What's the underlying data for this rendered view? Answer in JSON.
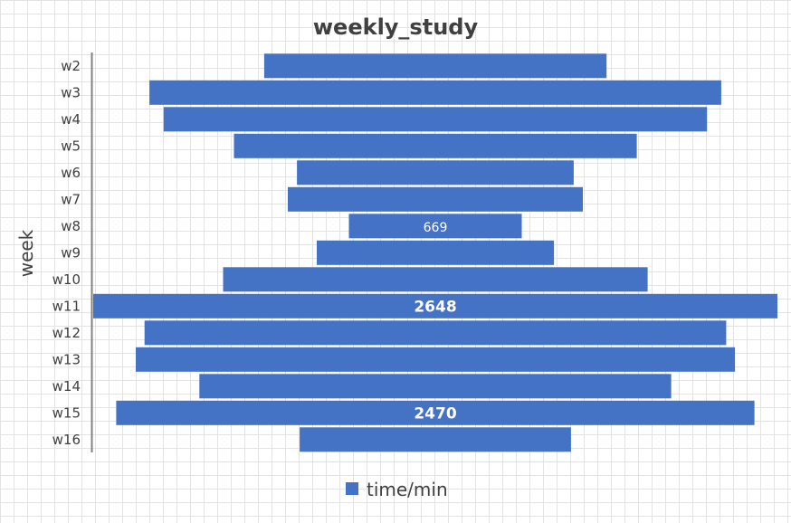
{
  "chart_data": {
    "type": "bar",
    "orientation": "horizontal",
    "layout": "centered",
    "title": "weekly_study",
    "ylabel": "week",
    "categories": [
      "w2",
      "w3",
      "w4",
      "w5",
      "w6",
      "w7",
      "w8",
      "w9",
      "w10",
      "w11",
      "w12",
      "w13",
      "w14",
      "w15",
      "w16"
    ],
    "series": [
      {
        "name": "time/min",
        "values": [
          1325,
          2213,
          2103,
          1559,
          1071,
          1142,
          669,
          918,
          1643,
          2648,
          2251,
          2319,
          1826,
          2470,
          1050
        ]
      }
    ],
    "data_labels": [
      {
        "category": "w8",
        "text": "669"
      },
      {
        "category": "w11",
        "text": "2648"
      },
      {
        "category": "w15",
        "text": "2470"
      }
    ],
    "grid": true,
    "legend_position": "bottom",
    "colors": {
      "bar": "#4472c4",
      "axis": "#808080",
      "text": "#404040"
    }
  }
}
